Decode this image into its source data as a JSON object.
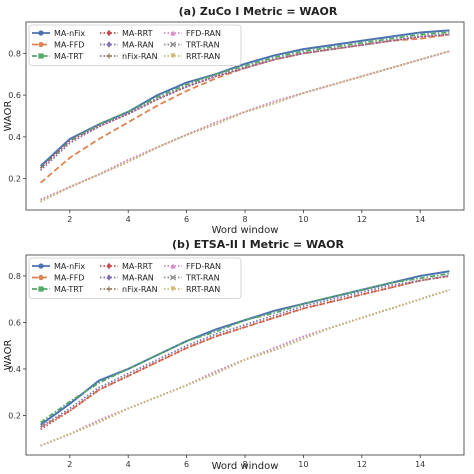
{
  "chart_data": [
    {
      "type": "line",
      "title": "(a) ZuCo I Metric = WAOR",
      "xlabel": "Word window",
      "ylabel": "WAOR",
      "xlim": [
        0.5,
        15.5
      ],
      "ylim": [
        0.05,
        0.95
      ],
      "xticks": [
        2,
        4,
        6,
        8,
        10,
        12,
        14
      ],
      "yticks": [
        0.2,
        0.4,
        0.6,
        0.8
      ],
      "grid": false,
      "legend_position": "top-left",
      "x": [
        1,
        2,
        3,
        4,
        5,
        6,
        7,
        8,
        9,
        10,
        11,
        12,
        13,
        14,
        15
      ],
      "series": [
        {
          "name": "MA-nFix",
          "color": "#4c72b0",
          "dash": "solid",
          "marker": "circle",
          "values": [
            0.26,
            0.39,
            0.46,
            0.52,
            0.6,
            0.66,
            0.7,
            0.75,
            0.79,
            0.82,
            0.84,
            0.86,
            0.88,
            0.9,
            0.91
          ]
        },
        {
          "name": "MA-FFD",
          "color": "#dd8452",
          "dash": "longdash",
          "marker": "circle",
          "values": [
            0.18,
            0.3,
            0.39,
            0.47,
            0.55,
            0.62,
            0.68,
            0.73,
            0.77,
            0.8,
            0.82,
            0.84,
            0.86,
            0.87,
            0.89
          ]
        },
        {
          "name": "MA-TRT",
          "color": "#55a868",
          "dash": "dashdot",
          "marker": "square",
          "values": [
            0.25,
            0.38,
            0.46,
            0.52,
            0.59,
            0.65,
            0.7,
            0.74,
            0.78,
            0.81,
            0.83,
            0.85,
            0.87,
            0.89,
            0.9
          ]
        },
        {
          "name": "MA-RRT",
          "color": "#c44e52",
          "dash": "dotted",
          "marker": "diamond",
          "values": [
            0.25,
            0.38,
            0.45,
            0.51,
            0.58,
            0.64,
            0.69,
            0.73,
            0.77,
            0.8,
            0.82,
            0.84,
            0.86,
            0.88,
            0.89
          ]
        },
        {
          "name": "MA-RAN",
          "color": "#8172b3",
          "dash": "dotted",
          "marker": "diamond",
          "values": [
            0.24,
            0.37,
            0.45,
            0.51,
            0.58,
            0.64,
            0.69,
            0.73,
            0.77,
            0.8,
            0.82,
            0.84,
            0.86,
            0.88,
            0.89
          ]
        },
        {
          "name": "nFix-RAN",
          "color": "#937860",
          "dash": "dotted",
          "marker": "plus",
          "values": [
            0.1,
            0.16,
            0.22,
            0.29,
            0.35,
            0.41,
            0.47,
            0.52,
            0.57,
            0.61,
            0.65,
            0.69,
            0.73,
            0.77,
            0.81
          ]
        },
        {
          "name": "FFD-RAN",
          "color": "#da8bc3",
          "dash": "dotted",
          "marker": "triangle-up",
          "values": [
            0.1,
            0.16,
            0.22,
            0.29,
            0.35,
            0.41,
            0.47,
            0.52,
            0.57,
            0.61,
            0.65,
            0.69,
            0.73,
            0.77,
            0.81
          ]
        },
        {
          "name": "TRT-RAN",
          "color": "#8c8c8c",
          "dash": "dotted",
          "marker": "x",
          "values": [
            0.09,
            0.16,
            0.22,
            0.28,
            0.35,
            0.41,
            0.46,
            0.52,
            0.56,
            0.61,
            0.65,
            0.69,
            0.73,
            0.77,
            0.81
          ]
        },
        {
          "name": "RRT-RAN",
          "color": "#ccb974",
          "dash": "dotted",
          "marker": "triangle-down",
          "values": [
            0.09,
            0.16,
            0.22,
            0.28,
            0.35,
            0.41,
            0.46,
            0.52,
            0.56,
            0.61,
            0.65,
            0.69,
            0.73,
            0.77,
            0.81
          ]
        }
      ]
    },
    {
      "type": "line",
      "title": "(b) ETSA-II I Metric = WAOR",
      "xlabel": "Word window",
      "ylabel": "WAOR",
      "xlim": [
        0.5,
        15.5
      ],
      "ylim": [
        0.03,
        0.89
      ],
      "xticks": [
        2,
        4,
        6,
        8,
        10,
        12,
        14
      ],
      "yticks": [
        0.2,
        0.4,
        0.6,
        0.8
      ],
      "grid": false,
      "legend_position": "top-left",
      "x": [
        1,
        2,
        3,
        4,
        5,
        6,
        7,
        8,
        9,
        10,
        11,
        12,
        13,
        14,
        15
      ],
      "series": [
        {
          "name": "MA-nFix",
          "color": "#4c72b0",
          "dash": "solid",
          "marker": "circle",
          "values": [
            0.16,
            0.25,
            0.35,
            0.4,
            0.46,
            0.52,
            0.57,
            0.61,
            0.65,
            0.68,
            0.71,
            0.74,
            0.77,
            0.8,
            0.82
          ]
        },
        {
          "name": "MA-FFD",
          "color": "#dd8452",
          "dash": "longdash",
          "marker": "circle",
          "values": [
            0.15,
            0.22,
            0.31,
            0.37,
            0.43,
            0.49,
            0.54,
            0.58,
            0.62,
            0.66,
            0.69,
            0.72,
            0.75,
            0.78,
            0.8
          ]
        },
        {
          "name": "MA-TRT",
          "color": "#55a868",
          "dash": "dashdot",
          "marker": "square",
          "values": [
            0.17,
            0.26,
            0.34,
            0.4,
            0.46,
            0.52,
            0.56,
            0.61,
            0.64,
            0.68,
            0.71,
            0.74,
            0.77,
            0.79,
            0.81
          ]
        },
        {
          "name": "MA-RRT",
          "color": "#c44e52",
          "dash": "dotted",
          "marker": "diamond",
          "values": [
            0.14,
            0.22,
            0.31,
            0.37,
            0.43,
            0.49,
            0.54,
            0.58,
            0.62,
            0.66,
            0.69,
            0.72,
            0.75,
            0.78,
            0.8
          ]
        },
        {
          "name": "MA-RAN",
          "color": "#8172b3",
          "dash": "dotted",
          "marker": "diamond",
          "values": [
            0.15,
            0.23,
            0.32,
            0.38,
            0.44,
            0.5,
            0.55,
            0.59,
            0.63,
            0.67,
            0.7,
            0.73,
            0.76,
            0.78,
            0.8
          ]
        },
        {
          "name": "nFix-RAN",
          "color": "#937860",
          "dash": "dotted",
          "marker": "plus",
          "values": [
            0.07,
            0.12,
            0.18,
            0.23,
            0.28,
            0.33,
            0.39,
            0.44,
            0.49,
            0.54,
            0.58,
            0.62,
            0.66,
            0.7,
            0.74
          ]
        },
        {
          "name": "FFD-RAN",
          "color": "#da8bc3",
          "dash": "dotted",
          "marker": "triangle-up",
          "values": [
            0.07,
            0.12,
            0.18,
            0.23,
            0.28,
            0.33,
            0.39,
            0.44,
            0.49,
            0.54,
            0.58,
            0.62,
            0.66,
            0.7,
            0.74
          ]
        },
        {
          "name": "TRT-RAN",
          "color": "#8c8c8c",
          "dash": "dotted",
          "marker": "x",
          "values": [
            0.07,
            0.12,
            0.17,
            0.23,
            0.28,
            0.33,
            0.38,
            0.44,
            0.48,
            0.53,
            0.58,
            0.62,
            0.66,
            0.7,
            0.74
          ]
        },
        {
          "name": "RRT-RAN",
          "color": "#ccb974",
          "dash": "dotted",
          "marker": "triangle-down",
          "values": [
            0.07,
            0.12,
            0.17,
            0.23,
            0.28,
            0.33,
            0.38,
            0.44,
            0.48,
            0.53,
            0.58,
            0.62,
            0.66,
            0.7,
            0.74
          ]
        }
      ]
    }
  ]
}
